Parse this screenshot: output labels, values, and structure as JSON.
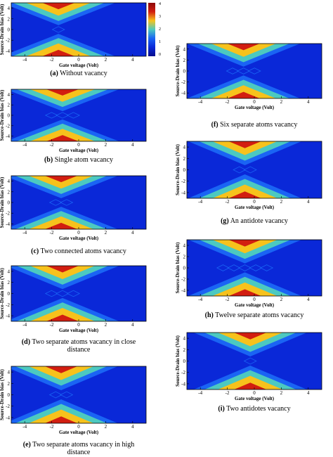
{
  "chart_data": {
    "type": "heatmap",
    "xlabel": "Gate voltage (Volt)",
    "ylabel": "Source-Drain bias (Volt)",
    "xlim": [
      -5,
      5
    ],
    "ylim": [
      -5,
      5
    ],
    "x_ticks": [
      "-4",
      "-2",
      "0",
      "2",
      "4"
    ],
    "y_ticks": [
      "4",
      "2",
      "0",
      "-2",
      "-4"
    ],
    "colorbar": {
      "ticks": [
        "4",
        "3",
        "2",
        "1",
        "0"
      ],
      "colors": [
        "#0a28d8",
        "#1a64f4",
        "#4cc9c0",
        "#f7c21c",
        "#d21e10"
      ]
    },
    "panels": [
      {
        "id": "a",
        "label": "(a)",
        "caption": "Without vacancy",
        "center": -1.5,
        "diamonds": 1
      },
      {
        "id": "b",
        "label": "(b)",
        "caption": "Single atom vacancy",
        "center": -1.2,
        "diamonds": 3
      },
      {
        "id": "c",
        "label": "(c)",
        "caption": "Two connected atoms vacancy",
        "center": -1.3,
        "diamonds": 2
      },
      {
        "id": "d",
        "label": "(d)",
        "caption": "Two separate atoms vacancy in close",
        "caption2": "distance",
        "center": -1.2,
        "diamonds": 3
      },
      {
        "id": "e",
        "label": "(e)",
        "caption": "Two separate atoms vacancy in high",
        "caption2": "distance",
        "center": -1.3,
        "diamonds": 2
      },
      {
        "id": "f",
        "label": "(f)",
        "caption": "Six separate atoms vacancy",
        "center": -0.8,
        "diamonds": 3
      },
      {
        "id": "g",
        "label": "(g)",
        "caption": "An antidote vacancy",
        "center": -0.7,
        "diamonds": 2
      },
      {
        "id": "h",
        "label": "(h)",
        "caption": "Twelve separate atoms vacancy",
        "center": -0.7,
        "diamonds": 5
      },
      {
        "id": "i",
        "label": "(i)",
        "caption": "Two antidotes vacancy",
        "center": -0.3,
        "diamonds": 1
      }
    ]
  }
}
